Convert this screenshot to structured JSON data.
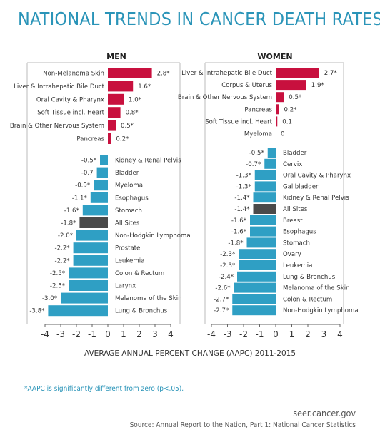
{
  "title": "NATIONAL TRENDS IN CANCER DEATH RATES",
  "footnote": "*AAPC is significantly different from zero (p<.05).",
  "site": "seer.cancer.gov",
  "source": "Source: Annual Report to the Nation, Part 1: National Cancer Statistics",
  "colors": {
    "title": "#2a94b8",
    "increase": "#c8103e",
    "decrease": "#2f9fc4",
    "all_sites": "#4a4a4a",
    "footnote": "#2a94b8"
  },
  "chart_data": [
    {
      "type": "bar",
      "orientation": "horizontal",
      "title": "MEN",
      "xlabel": "AVERAGE ANNUAL PERCENT CHANGE (AAPC) 2011-2015",
      "xlim": [
        -4,
        4
      ],
      "xticks": [
        "-4",
        "-3",
        "-2",
        "-1",
        "0",
        "1",
        "2",
        "3",
        "4"
      ],
      "increases": [
        {
          "category": "Non-Melanoma Skin",
          "value": 2.8,
          "label": "2.8*"
        },
        {
          "category": "Liver & Intrahepatic Bile Duct",
          "value": 1.6,
          "label": "1.6*"
        },
        {
          "category": "Oral Cavity & Pharynx",
          "value": 1.0,
          "label": "1.0*"
        },
        {
          "category": "Soft Tissue incl. Heart",
          "value": 0.8,
          "label": "0.8*"
        },
        {
          "category": "Brain & Other Nervous System",
          "value": 0.5,
          "label": "0.5*"
        },
        {
          "category": "Pancreas",
          "value": 0.2,
          "label": "0.2*"
        }
      ],
      "decreases": [
        {
          "category": "Kidney & Renal Pelvis",
          "value": -0.5,
          "label": "-0.5*"
        },
        {
          "category": "Bladder",
          "value": -0.7,
          "label": "-0.7"
        },
        {
          "category": "Myeloma",
          "value": -0.9,
          "label": "-0.9*"
        },
        {
          "category": "Esophagus",
          "value": -1.1,
          "label": "-1.1*"
        },
        {
          "category": "Stomach",
          "value": -1.6,
          "label": "-1.6*"
        },
        {
          "category": "All Sites",
          "value": -1.8,
          "label": "-1.8*",
          "highlight": true
        },
        {
          "category": "Non-Hodgkin Lymphoma",
          "value": -2.0,
          "label": "-2.0*"
        },
        {
          "category": "Prostate",
          "value": -2.2,
          "label": "-2.2*"
        },
        {
          "category": "Leukemia",
          "value": -2.2,
          "label": "-2.2*"
        },
        {
          "category": "Colon & Rectum",
          "value": -2.5,
          "label": "-2.5*"
        },
        {
          "category": "Larynx",
          "value": -2.5,
          "label": "-2.5*"
        },
        {
          "category": "Melanoma of the Skin",
          "value": -3.0,
          "label": "-3.0*"
        },
        {
          "category": "Lung & Bronchus",
          "value": -3.8,
          "label": "-3.8*"
        }
      ]
    },
    {
      "type": "bar",
      "orientation": "horizontal",
      "title": "WOMEN",
      "xlabel": "AVERAGE ANNUAL PERCENT CHANGE (AAPC) 2011-2015",
      "xlim": [
        -4,
        4
      ],
      "xticks": [
        "-4",
        "-3",
        "-2",
        "-1",
        "0",
        "1",
        "2",
        "3",
        "4"
      ],
      "increases": [
        {
          "category": "Liver & Intrahepatic Bile Duct",
          "value": 2.7,
          "label": "2.7*"
        },
        {
          "category": "Corpus & Uterus",
          "value": 1.9,
          "label": "1.9*"
        },
        {
          "category": "Brain & Other Nervous System",
          "value": 0.5,
          "label": "0.5*"
        },
        {
          "category": "Pancreas",
          "value": 0.2,
          "label": "0.2*"
        },
        {
          "category": "Soft Tissue incl. Heart",
          "value": 0.1,
          "label": "0.1"
        },
        {
          "category": "Myeloma",
          "value": 0,
          "label": "0"
        }
      ],
      "decreases": [
        {
          "category": "Bladder",
          "value": -0.5,
          "label": "-0.5*"
        },
        {
          "category": "Cervix",
          "value": -0.7,
          "label": "-0.7*"
        },
        {
          "category": "Oral Cavity & Pharynx",
          "value": -1.3,
          "label": "-1.3*"
        },
        {
          "category": "Gallbladder",
          "value": -1.3,
          "label": "-1.3*"
        },
        {
          "category": "Kidney & Renal Pelvis",
          "value": -1.4,
          "label": "-1.4*"
        },
        {
          "category": "All Sites",
          "value": -1.4,
          "label": "-1.4*",
          "highlight": true
        },
        {
          "category": "Breast",
          "value": -1.6,
          "label": "-1.6*"
        },
        {
          "category": "Esophagus",
          "value": -1.6,
          "label": "-1.6*"
        },
        {
          "category": "Stomach",
          "value": -1.8,
          "label": "-1.8*"
        },
        {
          "category": "Ovary",
          "value": -2.3,
          "label": "-2.3*"
        },
        {
          "category": "Leukemia",
          "value": -2.3,
          "label": "-2.3*"
        },
        {
          "category": "Lung & Bronchus",
          "value": -2.4,
          "label": "-2.4*"
        },
        {
          "category": "Melanoma of the Skin",
          "value": -2.6,
          "label": "-2.6*"
        },
        {
          "category": "Colon & Rectum",
          "value": -2.7,
          "label": "-2.7*"
        },
        {
          "category": "Non-Hodgkin Lymphoma",
          "value": -2.7,
          "label": "-2.7*"
        }
      ]
    }
  ]
}
